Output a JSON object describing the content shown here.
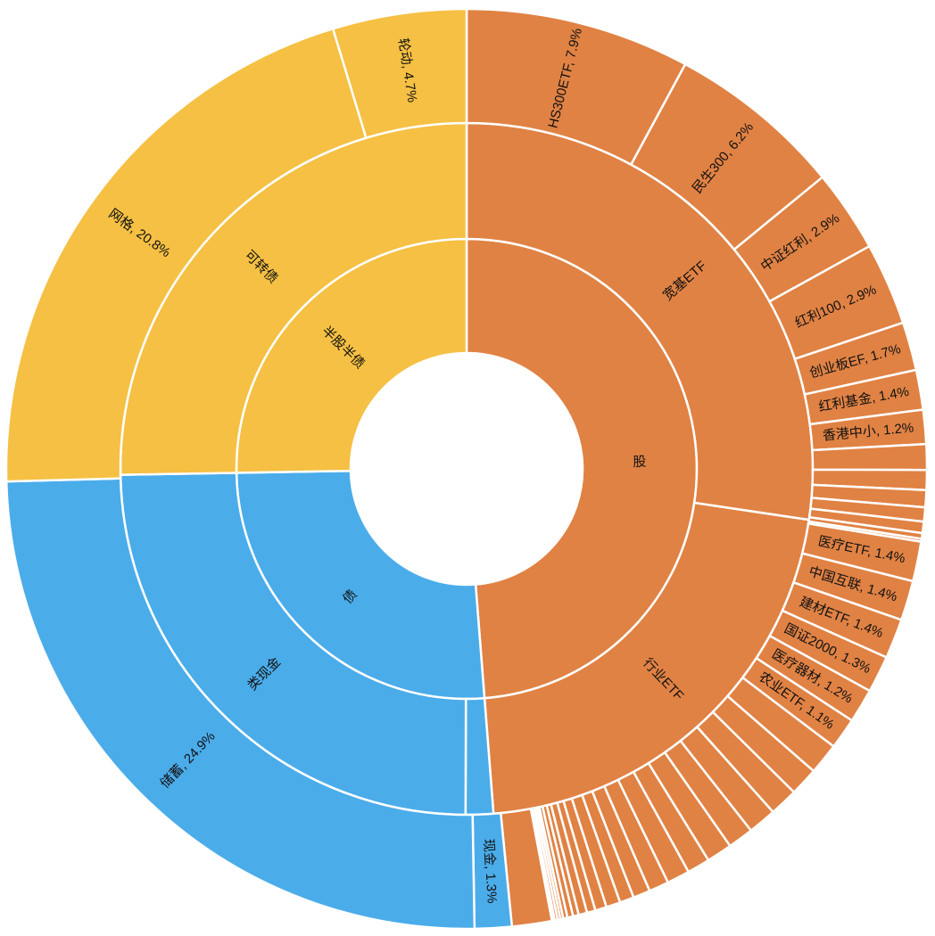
{
  "chart_data": {
    "type": "sunburst",
    "title": "",
    "colors": {
      "stock": "#E08244",
      "bond": "#4BACEA",
      "hybrid": "#F5C043",
      "border": "#FFFFFF"
    },
    "rings": {
      "inner": [
        {
          "label": "股",
          "value": 49.2,
          "color": "stock"
        },
        {
          "label": "债",
          "value": 26.2,
          "color": "bond"
        },
        {
          "label": "半股半债",
          "value": 25.5,
          "color": "hybrid"
        }
      ],
      "middle": [
        {
          "label": "宽基ETF",
          "value": 27.6,
          "color": "stock"
        },
        {
          "label": "行业ETF",
          "value": 21.6,
          "color": "stock"
        },
        {
          "label": "",
          "value": 1.3,
          "color": "bond"
        },
        {
          "label": "类现金",
          "value": 24.9,
          "color": "bond"
        },
        {
          "label": "可转债",
          "value": 25.5,
          "color": "hybrid"
        }
      ],
      "outer": [
        {
          "label": "HS300ETF, 7.9%",
          "value": 7.9,
          "color": "stock"
        },
        {
          "label": "民生300, 6.2%",
          "value": 6.2,
          "color": "stock"
        },
        {
          "label": "中证红利, 2.9%",
          "value": 2.9,
          "color": "stock"
        },
        {
          "label": "红利100, 2.9%",
          "value": 2.9,
          "color": "stock"
        },
        {
          "label": "创业板EF, 1.7%",
          "value": 1.7,
          "color": "stock"
        },
        {
          "label": "红利基金, 1.4%",
          "value": 1.4,
          "color": "stock"
        },
        {
          "label": "香港中小, 1.2%",
          "value": 1.2,
          "color": "stock"
        },
        {
          "label": "",
          "value": 0.9,
          "color": "stock"
        },
        {
          "label": "",
          "value": 0.7,
          "color": "stock"
        },
        {
          "label": "",
          "value": 0.6,
          "color": "stock"
        },
        {
          "label": "",
          "value": 0.5,
          "color": "stock"
        },
        {
          "label": "",
          "value": 0.4,
          "color": "stock"
        },
        {
          "label": "",
          "value": 0.2,
          "color": "stock"
        },
        {
          "label": "",
          "value": 0.1,
          "color": "stock"
        },
        {
          "label": "医疗ETF, 1.4%",
          "value": 1.4,
          "color": "stock"
        },
        {
          "label": "中国互联, 1.4%",
          "value": 1.4,
          "color": "stock"
        },
        {
          "label": "建材ETF, 1.4%",
          "value": 1.4,
          "color": "stock"
        },
        {
          "label": "国证2000, 1.3%",
          "value": 1.3,
          "color": "stock"
        },
        {
          "label": "医疗器材, 1.2%",
          "value": 1.2,
          "color": "stock"
        },
        {
          "label": "农业ETF, 1.1%",
          "value": 1.1,
          "color": "stock"
        },
        {
          "label": "",
          "value": 1.1,
          "color": "stock"
        },
        {
          "label": "",
          "value": 1.0,
          "color": "stock"
        },
        {
          "label": "",
          "value": 1.0,
          "color": "stock"
        },
        {
          "label": "",
          "value": 1.0,
          "color": "stock"
        },
        {
          "label": "",
          "value": 0.9,
          "color": "stock"
        },
        {
          "label": "",
          "value": 0.9,
          "color": "stock"
        },
        {
          "label": "",
          "value": 0.8,
          "color": "stock"
        },
        {
          "label": "",
          "value": 0.8,
          "color": "stock"
        },
        {
          "label": "",
          "value": 0.7,
          "color": "stock"
        },
        {
          "label": "",
          "value": 0.6,
          "color": "stock"
        },
        {
          "label": "",
          "value": 0.5,
          "color": "stock"
        },
        {
          "label": "",
          "value": 0.5,
          "color": "stock"
        },
        {
          "label": "",
          "value": 0.4,
          "color": "stock"
        },
        {
          "label": "",
          "value": 0.3,
          "color": "stock"
        },
        {
          "label": "",
          "value": 0.3,
          "color": "stock"
        },
        {
          "label": "",
          "value": 0.2,
          "color": "stock"
        },
        {
          "label": "",
          "value": 0.2,
          "color": "stock"
        },
        {
          "label": "",
          "value": 0.15,
          "color": "stock"
        },
        {
          "label": "",
          "value": 0.1,
          "color": "stock"
        },
        {
          "label": "",
          "value": 0.1,
          "color": "stock"
        },
        {
          "label": "",
          "value": 0.1,
          "color": "stock"
        },
        {
          "label": "",
          "value": 0.05,
          "color": "stock"
        },
        {
          "label": "",
          "value": 0.05,
          "color": "stock"
        },
        {
          "label": "",
          "value": 1.4,
          "color": "stock"
        },
        {
          "label": "现金, 1.3%",
          "value": 1.3,
          "color": "bond"
        },
        {
          "label": "储蓄, 24.9%",
          "value": 24.9,
          "color": "bond"
        },
        {
          "label": "网格, 20.8%",
          "value": 20.8,
          "color": "hybrid"
        },
        {
          "label": "轮动, 4.7%",
          "value": 4.7,
          "color": "hybrid"
        }
      ]
    }
  }
}
